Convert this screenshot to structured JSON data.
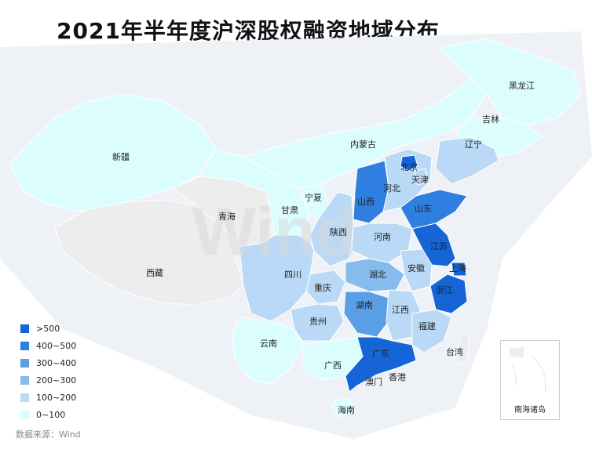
{
  "title": "2021年半年度沪深股权融资地域分布",
  "source": "数据来源：Wind",
  "watermark": "Wind",
  "inset_label": "南海诸岛",
  "colors": {
    "gt500": "#1565d8",
    "c400_500": "#2f7fe0",
    "c300_400": "#5a9ee6",
    "c200_300": "#86bbee",
    "c100_200": "#b9d9f6",
    "c0_100": "#dcfdfd",
    "nodata": "#ededed"
  },
  "legend": [
    {
      "label": ">500",
      "color": "#1565d8"
    },
    {
      "label": "400~500",
      "color": "#2f7fe0"
    },
    {
      "label": "300~400",
      "color": "#5a9ee6"
    },
    {
      "label": "200~300",
      "color": "#86bbee"
    },
    {
      "label": "100~200",
      "color": "#b9d9f6"
    },
    {
      "label": "0~100",
      "color": "#dcfdfd"
    }
  ],
  "provinces": [
    {
      "name": "黑龙江",
      "bin": "0~100"
    },
    {
      "name": "吉林",
      "bin": "0~100"
    },
    {
      "name": "辽宁",
      "bin": "100~200"
    },
    {
      "name": "内蒙古",
      "bin": "0~100"
    },
    {
      "name": "新疆",
      "bin": "0~100"
    },
    {
      "name": "北京",
      "bin": ">500"
    },
    {
      "name": "天津",
      "bin": "100~200"
    },
    {
      "name": "河北",
      "bin": "100~200"
    },
    {
      "name": "山西",
      "bin": "400~500"
    },
    {
      "name": "山东",
      "bin": "400~500"
    },
    {
      "name": "宁夏",
      "bin": "0~100"
    },
    {
      "name": "甘肃",
      "bin": "0~100"
    },
    {
      "name": "青海",
      "bin": ""
    },
    {
      "name": "西藏",
      "bin": ""
    },
    {
      "name": "陕西",
      "bin": "100~200"
    },
    {
      "name": "河南",
      "bin": "100~200"
    },
    {
      "name": "江苏",
      "bin": ">500"
    },
    {
      "name": "上海",
      "bin": ">500"
    },
    {
      "name": "安徽",
      "bin": "100~200"
    },
    {
      "name": "湖北",
      "bin": "200~300"
    },
    {
      "name": "四川",
      "bin": "100~200"
    },
    {
      "name": "重庆",
      "bin": "100~200"
    },
    {
      "name": "浙江",
      "bin": ">500"
    },
    {
      "name": "湖南",
      "bin": "300~400"
    },
    {
      "name": "江西",
      "bin": "100~200"
    },
    {
      "name": "贵州",
      "bin": "100~200"
    },
    {
      "name": "福建",
      "bin": "100~200"
    },
    {
      "name": "云南",
      "bin": "0~100"
    },
    {
      "name": "台湾",
      "bin": ""
    },
    {
      "name": "广西",
      "bin": "0~100"
    },
    {
      "name": "广东",
      "bin": ">500"
    },
    {
      "name": "香港",
      "bin": ""
    },
    {
      "name": "澳门",
      "bin": ""
    },
    {
      "name": "海南",
      "bin": "0~100"
    }
  ]
}
